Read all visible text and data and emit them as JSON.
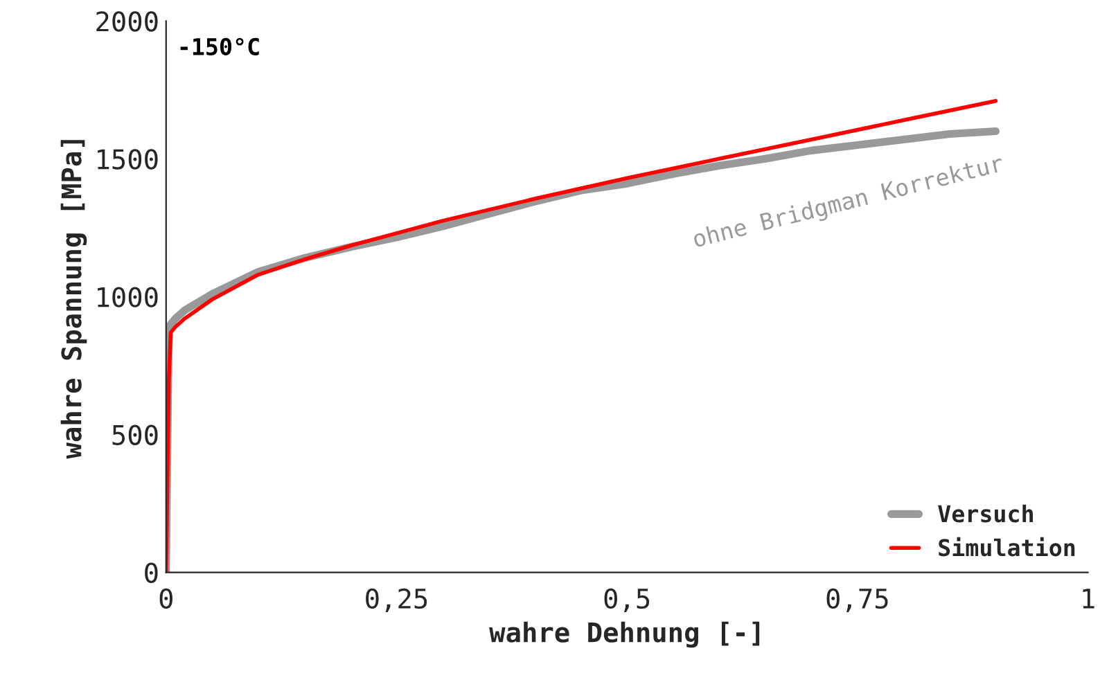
{
  "chart_data": {
    "type": "line",
    "xlabel": "wahre Dehnung [-]",
    "ylabel": "wahre Spannung [MPa]",
    "xlim": [
      0,
      1
    ],
    "xticks": [
      0,
      {
        "value": 0.25,
        "label": "0,25"
      },
      {
        "value": 0.5,
        "label": "0,5"
      },
      {
        "value": 0.75,
        "label": "0,75"
      },
      1
    ],
    "ylim": [
      0,
      2000
    ],
    "yticks": [
      0,
      500,
      1000,
      1500,
      2000
    ],
    "grid": false,
    "legend": "bottom right",
    "annotations": [
      "-150°C",
      "ohne Bridgman Korrektur"
    ],
    "series": [
      {
        "name": "Versuch",
        "color": "#999999",
        "x": [
          0,
          0.002,
          0.003,
          0.005,
          0.01,
          0.02,
          0.05,
          0.1,
          0.15,
          0.2,
          0.25,
          0.3,
          0.35,
          0.4,
          0.45,
          0.5,
          0.55,
          0.6,
          0.65,
          0.7,
          0.75,
          0.8,
          0.85,
          0.9
        ],
        "values": [
          0,
          600,
          880,
          900,
          920,
          950,
          1010,
          1090,
          1140,
          1180,
          1215,
          1255,
          1300,
          1345,
          1385,
          1410,
          1445,
          1475,
          1500,
          1530,
          1550,
          1570,
          1590,
          1600
        ]
      },
      {
        "name": "Simulation",
        "color": "#ff0000",
        "x": [
          0,
          0.003,
          0.005,
          0.01,
          0.02,
          0.05,
          0.1,
          0.15,
          0.2,
          0.25,
          0.3,
          0.4,
          0.5,
          0.6,
          0.7,
          0.8,
          0.9
        ],
        "values": [
          0,
          700,
          870,
          890,
          920,
          990,
          1080,
          1135,
          1185,
          1230,
          1275,
          1355,
          1430,
          1500,
          1570,
          1640,
          1710
        ]
      }
    ]
  }
}
